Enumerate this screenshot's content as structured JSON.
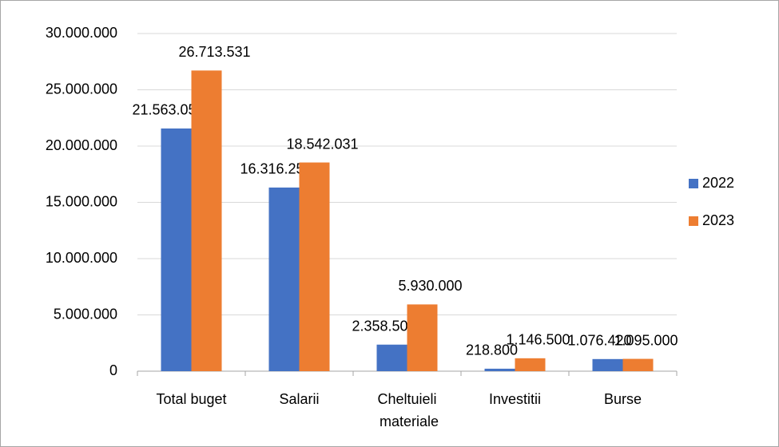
{
  "chart_data": {
    "type": "bar",
    "categories": [
      "Total buget",
      "Salarii",
      "Cheltuieli materiale",
      "Investitii",
      "Burse"
    ],
    "series": [
      {
        "name": "2022",
        "color": "#4472c4",
        "values": [
          21563052,
          16316252,
          2358500,
          218800,
          1076420
        ],
        "value_labels": [
          "21.563.052",
          "16.316.252",
          "2.358.500",
          "218.800",
          "1.076.420"
        ]
      },
      {
        "name": "2023",
        "color": "#ed7d31",
        "values": [
          26713531,
          18542031,
          5930000,
          1146500,
          1095000
        ],
        "value_labels": [
          "26.713.531",
          "18.542.031",
          "5.930.000",
          "1.146.500",
          "1.095.000"
        ]
      }
    ],
    "ylim": [
      0,
      30000000
    ],
    "yticks": [
      0,
      {
        "value": 5000000,
        "label": "5.000.000"
      },
      {
        "value": 10000000,
        "label": "10.000.000"
      },
      {
        "value": 15000000,
        "label": "15.000.000"
      },
      {
        "value": 20000000,
        "label": "20.000.000"
      },
      {
        "value": 25000000,
        "label": "25.000.000"
      },
      {
        "value": 30000000,
        "label": "30.000.000"
      }
    ],
    "grid": true,
    "legend": "right"
  }
}
